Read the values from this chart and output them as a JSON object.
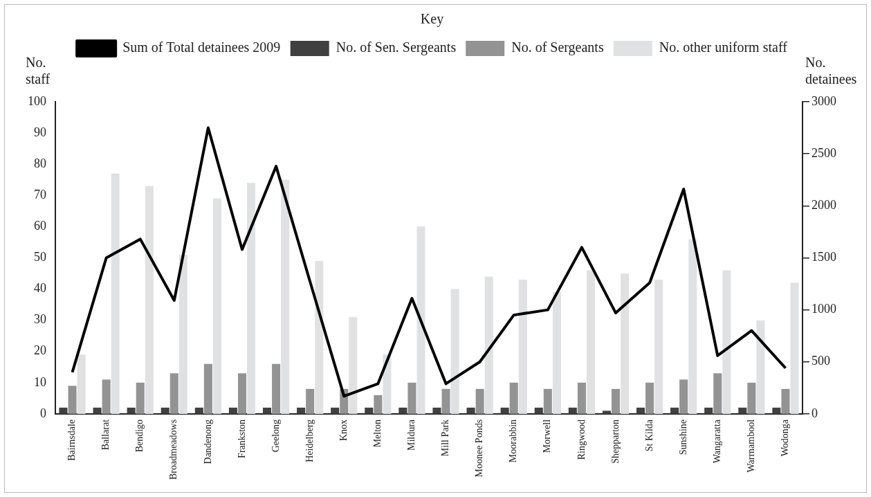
{
  "chart_data": {
    "type": "bar",
    "legend_title": "Key",
    "ylabel": "No. staff",
    "y2label": "No. detainees",
    "categories": [
      "Bairnsdale",
      "Ballarat",
      "Bendigo",
      "Broadmeadows",
      "Dandenong",
      "Frankston",
      "Geelong",
      "Heidelberg",
      "Knox",
      "Melton",
      "Mildura",
      "Mill Park",
      "Moonee Ponds",
      "Moorabbin",
      "Morwell",
      "Ringwood",
      "Shepparton",
      "St Kilda",
      "Sunshine",
      "Wangaratta",
      "Warrnambool",
      "Wodonga"
    ],
    "series": [
      {
        "name": "Sum of Total detainees 2009",
        "type": "line",
        "axis": "y2",
        "color": "#000000",
        "values": [
          400,
          1500,
          1680,
          1090,
          2750,
          1580,
          2380,
          1270,
          170,
          290,
          1110,
          290,
          500,
          950,
          1000,
          1600,
          970,
          1260,
          2160,
          560,
          800,
          440
        ]
      },
      {
        "name": "No. of Sen. Sergeants",
        "color": "#404040",
        "values": [
          2,
          2,
          2,
          2,
          2,
          2,
          2,
          2,
          2,
          2,
          2,
          2,
          2,
          2,
          2,
          2,
          1,
          2,
          2,
          2,
          2,
          2
        ]
      },
      {
        "name": "No. of Sergeants",
        "color": "#939393",
        "values": [
          9,
          11,
          10,
          13,
          16,
          13,
          16,
          8,
          8,
          6,
          10,
          8,
          8,
          10,
          8,
          10,
          8,
          10,
          11,
          13,
          10,
          8
        ]
      },
      {
        "name": "No. other uniform staff",
        "color": "#e0e1e3",
        "values": [
          19,
          77,
          73,
          51,
          69,
          74,
          75,
          49,
          31,
          19,
          60,
          40,
          44,
          43,
          39,
          46,
          45,
          43,
          56,
          46,
          30,
          42
        ]
      }
    ],
    "ylim": [
      0,
      100
    ],
    "yticks": [
      0,
      10,
      20,
      30,
      40,
      50,
      60,
      70,
      80,
      90,
      100
    ],
    "y2lim": [
      0,
      3000
    ],
    "y2ticks": [
      0,
      500,
      1000,
      1500,
      2000,
      2500,
      3000
    ],
    "grid": false,
    "legend": "top",
    "line_style": "solid",
    "marker": "none"
  }
}
